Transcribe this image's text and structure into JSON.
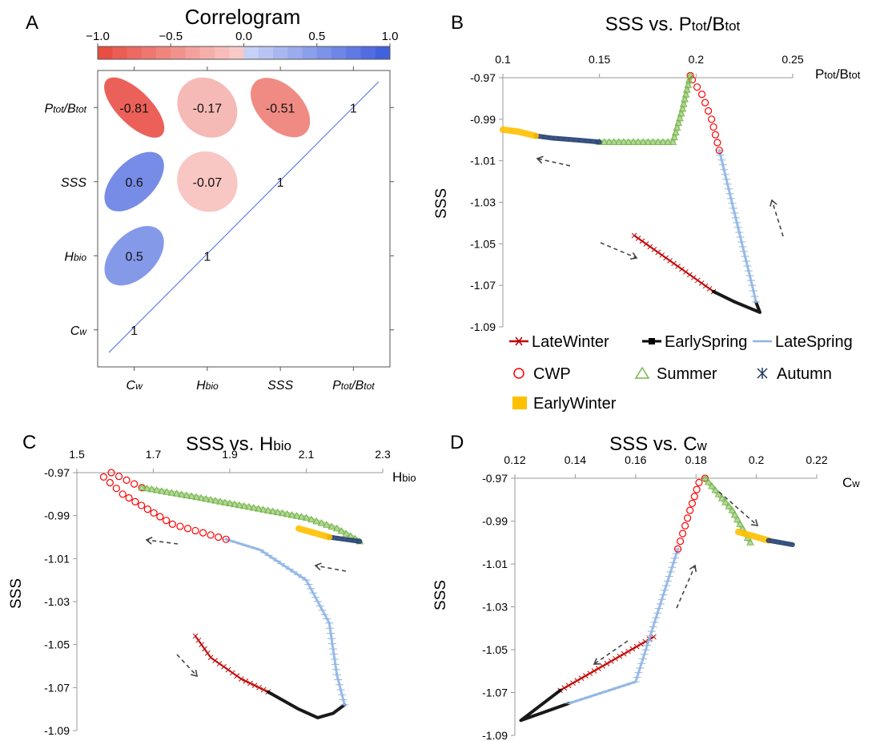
{
  "panels": {
    "A": {
      "letter": "A",
      "title": "Correlogram",
      "colorbar": {
        "ticks": [
          "−1.0",
          "−0.5",
          "0.0",
          "0.5",
          "1.0"
        ],
        "neg_color": "#e8473d",
        "pos_color": "#3b5bdc"
      },
      "row_labels": [
        {
          "main": "P",
          "sub": "tot",
          "mid": "/B",
          "sub2": "tot"
        },
        {
          "main": "SSS",
          "sub": "",
          "mid": "",
          "sub2": ""
        },
        {
          "main": "H",
          "sub": "bio",
          "mid": "",
          "sub2": ""
        },
        {
          "main": "C",
          "sub": "w",
          "mid": "",
          "sub2": ""
        }
      ],
      "col_labels": [
        {
          "main": "C",
          "sub": "w",
          "mid": "",
          "sub2": ""
        },
        {
          "main": "H",
          "sub": "bio",
          "mid": "",
          "sub2": ""
        },
        {
          "main": "SSS",
          "sub": "",
          "mid": "",
          "sub2": ""
        },
        {
          "main": "P",
          "sub": "tot",
          "mid": "/B",
          "sub2": "tot"
        }
      ]
    },
    "B": {
      "letter": "B",
      "title_main": "SSS vs. P",
      "title_sub1": "tot",
      "title_mid": "/B",
      "title_sub2": "tot",
      "xlabel_main": "P",
      "xlabel_sub1": "tot",
      "xlabel_mid": "/B",
      "xlabel_sub2": "tot",
      "ylabel": "SSS"
    },
    "C": {
      "letter": "C",
      "title_main": "SSS vs. H",
      "title_sub1": "bio",
      "xlabel_main": "H",
      "xlabel_sub1": "bio",
      "ylabel": "SSS"
    },
    "D": {
      "letter": "D",
      "title_main": "SSS vs. C",
      "title_sub1": "w",
      "xlabel_main": "C",
      "xlabel_sub1": "w",
      "ylabel": "SSS"
    }
  },
  "legend": [
    {
      "label": "LateWinter",
      "color": "#c00000",
      "marker": "x-line"
    },
    {
      "label": "EarlySpring",
      "color": "#000000",
      "marker": "square-line"
    },
    {
      "label": "LateSpring",
      "color": "#8eb4e3",
      "marker": "line"
    },
    {
      "label": "CWP",
      "color": "#ff0000",
      "marker": "circle"
    },
    {
      "label": "Summer",
      "color": "#77b64a",
      "marker": "triangle"
    },
    {
      "label": "Autumn",
      "color": "#1f3864",
      "marker": "star"
    },
    {
      "label": "EarlyWinter",
      "color": "#ffc000",
      "marker": "square"
    }
  ],
  "chart_data": [
    {
      "panel": "A",
      "type": "heatmap",
      "title": "Correlogram",
      "variables": [
        "Cw",
        "Hbio",
        "SSS",
        "Ptot/Btot"
      ],
      "colorbar_range": [
        -1.0,
        1.0
      ],
      "correlations": [
        {
          "row": "Ptot/Btot",
          "col": "Cw",
          "value": -0.81
        },
        {
          "row": "Ptot/Btot",
          "col": "Hbio",
          "value": -0.17
        },
        {
          "row": "Ptot/Btot",
          "col": "SSS",
          "value": -0.51
        },
        {
          "row": "Ptot/Btot",
          "col": "Ptot/Btot",
          "value": 1
        },
        {
          "row": "SSS",
          "col": "Cw",
          "value": 0.6
        },
        {
          "row": "SSS",
          "col": "Hbio",
          "value": -0.07
        },
        {
          "row": "SSS",
          "col": "SSS",
          "value": 1
        },
        {
          "row": "Hbio",
          "col": "Cw",
          "value": 0.5
        },
        {
          "row": "Hbio",
          "col": "Hbio",
          "value": 1
        },
        {
          "row": "Cw",
          "col": "Cw",
          "value": 1
        }
      ]
    },
    {
      "panel": "B",
      "type": "line",
      "title": "SSS vs. Ptot/Btot",
      "xlabel": "Ptot/Btot",
      "ylabel": "SSS",
      "xlim": [
        0.1,
        0.25
      ],
      "ylim": [
        -1.09,
        -0.97
      ],
      "xticks": [
        "0.1",
        "0.15",
        "0.2",
        "0.25"
      ],
      "yticks": [
        "-0.97",
        "-0.99",
        "-1.01",
        "-1.03",
        "-1.05",
        "-1.07",
        "-1.09"
      ],
      "series": [
        {
          "name": "LateWinter",
          "points": [
            [
              0.168,
              -1.046
            ],
            [
              0.209,
              -1.073
            ]
          ]
        },
        {
          "name": "EarlySpring",
          "points": [
            [
              0.209,
              -1.073
            ],
            [
              0.22,
              -1.078
            ],
            [
              0.233,
              -1.083
            ],
            [
              0.231,
              -1.078
            ]
          ]
        },
        {
          "name": "LateSpring",
          "points": [
            [
              0.231,
              -1.078
            ],
            [
              0.229,
              -1.07
            ],
            [
              0.212,
              -1.005
            ]
          ]
        },
        {
          "name": "CWP",
          "points": [
            [
              0.212,
              -1.005
            ],
            [
              0.208,
              -0.99
            ],
            [
              0.203,
              -0.978
            ],
            [
              0.198,
              -0.971
            ],
            [
              0.197,
              -0.969
            ]
          ]
        },
        {
          "name": "Summer",
          "points": [
            [
              0.197,
              -0.969
            ],
            [
              0.193,
              -0.985
            ],
            [
              0.188,
              -1.001
            ],
            [
              0.17,
              -1.001
            ],
            [
              0.15,
              -1.001
            ]
          ]
        },
        {
          "name": "Autumn",
          "points": [
            [
              0.15,
              -1.001
            ],
            [
              0.138,
              -1.0
            ],
            [
              0.125,
              -0.999
            ],
            [
              0.117,
              -0.998
            ]
          ]
        },
        {
          "name": "EarlyWinter",
          "points": [
            [
              0.117,
              -0.998
            ],
            [
              0.108,
              -0.996
            ],
            [
              0.1,
              -0.995
            ]
          ]
        }
      ]
    },
    {
      "panel": "C",
      "type": "line",
      "title": "SSS vs. Hbio",
      "xlabel": "Hbio",
      "ylabel": "SSS",
      "xlim": [
        1.5,
        2.3
      ],
      "ylim": [
        -1.09,
        -0.97
      ],
      "xticks": [
        "1.5",
        "1.7",
        "1.9",
        "2.1",
        "2.3"
      ],
      "yticks": [
        "-0.97",
        "-0.99",
        "-1.01",
        "-1.03",
        "-1.05",
        "-1.07",
        "-1.09"
      ],
      "series": [
        {
          "name": "LateWinter",
          "points": [
            [
              1.81,
              -1.046
            ],
            [
              1.85,
              -1.056
            ],
            [
              1.93,
              -1.066
            ],
            [
              2.0,
              -1.072
            ]
          ]
        },
        {
          "name": "EarlySpring",
          "points": [
            [
              2.0,
              -1.072
            ],
            [
              2.08,
              -1.08
            ],
            [
              2.13,
              -1.084
            ],
            [
              2.17,
              -1.082
            ],
            [
              2.2,
              -1.078
            ]
          ]
        },
        {
          "name": "LateSpring",
          "points": [
            [
              2.2,
              -1.078
            ],
            [
              2.18,
              -1.064
            ],
            [
              2.16,
              -1.04
            ],
            [
              2.1,
              -1.02
            ],
            [
              1.98,
              -1.006
            ],
            [
              1.89,
              -1.001
            ]
          ]
        },
        {
          "name": "CWP",
          "points": [
            [
              1.89,
              -1.001
            ],
            [
              1.75,
              -0.994
            ],
            [
              1.62,
              -0.98
            ],
            [
              1.57,
              -0.972
            ],
            [
              1.59,
              -0.97
            ],
            [
              1.67,
              -0.977
            ]
          ]
        },
        {
          "name": "Summer",
          "points": [
            [
              1.67,
              -0.977
            ],
            [
              1.8,
              -0.981
            ],
            [
              1.95,
              -0.986
            ],
            [
              2.1,
              -0.991
            ],
            [
              2.18,
              -0.996
            ],
            [
              2.24,
              -1.002
            ]
          ]
        },
        {
          "name": "Autumn",
          "points": [
            [
              2.24,
              -1.002
            ],
            [
              2.2,
              -1.001
            ],
            [
              2.16,
              -1.0
            ]
          ]
        },
        {
          "name": "EarlyWinter",
          "points": [
            [
              2.16,
              -1.0
            ],
            [
              2.12,
              -0.998
            ],
            [
              2.08,
              -0.996
            ]
          ]
        }
      ]
    },
    {
      "panel": "D",
      "type": "line",
      "title": "SSS vs. Cw",
      "xlabel": "Cw",
      "ylabel": "SSS",
      "xlim": [
        0.12,
        0.22
      ],
      "ylim": [
        -1.09,
        -0.97
      ],
      "xticks": [
        "0.12",
        "0.14",
        "0.16",
        "0.18",
        "0.2",
        "0.22"
      ],
      "yticks": [
        "-0.97",
        "-0.99",
        "-1.01",
        "-1.03",
        "-1.05",
        "-1.07",
        "-1.09"
      ],
      "series": [
        {
          "name": "LateWinter",
          "points": [
            [
              0.166,
              -1.044
            ],
            [
              0.135,
              -1.069
            ]
          ]
        },
        {
          "name": "EarlySpring",
          "points": [
            [
              0.135,
              -1.069
            ],
            [
              0.122,
              -1.083
            ],
            [
              0.138,
              -1.075
            ]
          ]
        },
        {
          "name": "LateSpring",
          "points": [
            [
              0.138,
              -1.075
            ],
            [
              0.16,
              -1.065
            ],
            [
              0.174,
              -1.003
            ]
          ]
        },
        {
          "name": "CWP",
          "points": [
            [
              0.174,
              -1.003
            ],
            [
              0.178,
              -0.985
            ],
            [
              0.181,
              -0.972
            ],
            [
              0.183,
              -0.97
            ]
          ]
        },
        {
          "name": "Summer",
          "points": [
            [
              0.183,
              -0.97
            ],
            [
              0.192,
              -0.985
            ],
            [
              0.198,
              -1.0
            ]
          ]
        },
        {
          "name": "EarlyWinter",
          "points": [
            [
              0.194,
              -0.995
            ],
            [
              0.204,
              -0.999
            ]
          ]
        },
        {
          "name": "Autumn",
          "points": [
            [
              0.204,
              -0.999
            ],
            [
              0.212,
              -1.001
            ]
          ]
        }
      ]
    }
  ]
}
